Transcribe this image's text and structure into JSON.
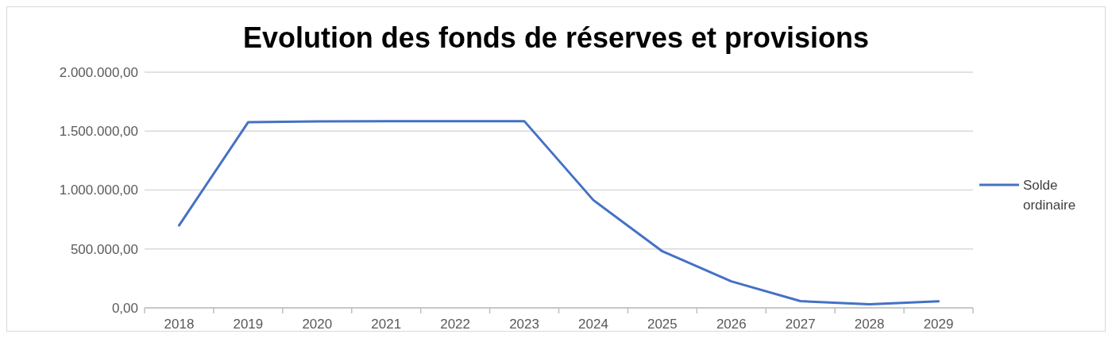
{
  "chart_data": {
    "type": "line",
    "title": "Evolution des fonds de réserves et provisions",
    "categories": [
      "2018",
      "2019",
      "2020",
      "2021",
      "2022",
      "2023",
      "2024",
      "2025",
      "2026",
      "2027",
      "2028",
      "2029"
    ],
    "series": [
      {
        "name": "Solde ordinaire",
        "color": "#4472c4",
        "values": [
          700000,
          1575000,
          1582000,
          1585000,
          1585000,
          1585000,
          915000,
          480000,
          225000,
          57000,
          30000,
          55000
        ]
      }
    ],
    "ylim": [
      0,
      2000000
    ],
    "yticks": [
      {
        "value": 0,
        "label": "0,00"
      },
      {
        "value": 500000,
        "label": "500.000,00"
      },
      {
        "value": 1000000,
        "label": "1.000.000,00"
      },
      {
        "value": 1500000,
        "label": "1.500.000,00"
      },
      {
        "value": 2000000,
        "label": "2.000.000,00"
      }
    ],
    "grid": "y",
    "legend": "right",
    "marker": "none",
    "line_style": "solid"
  }
}
